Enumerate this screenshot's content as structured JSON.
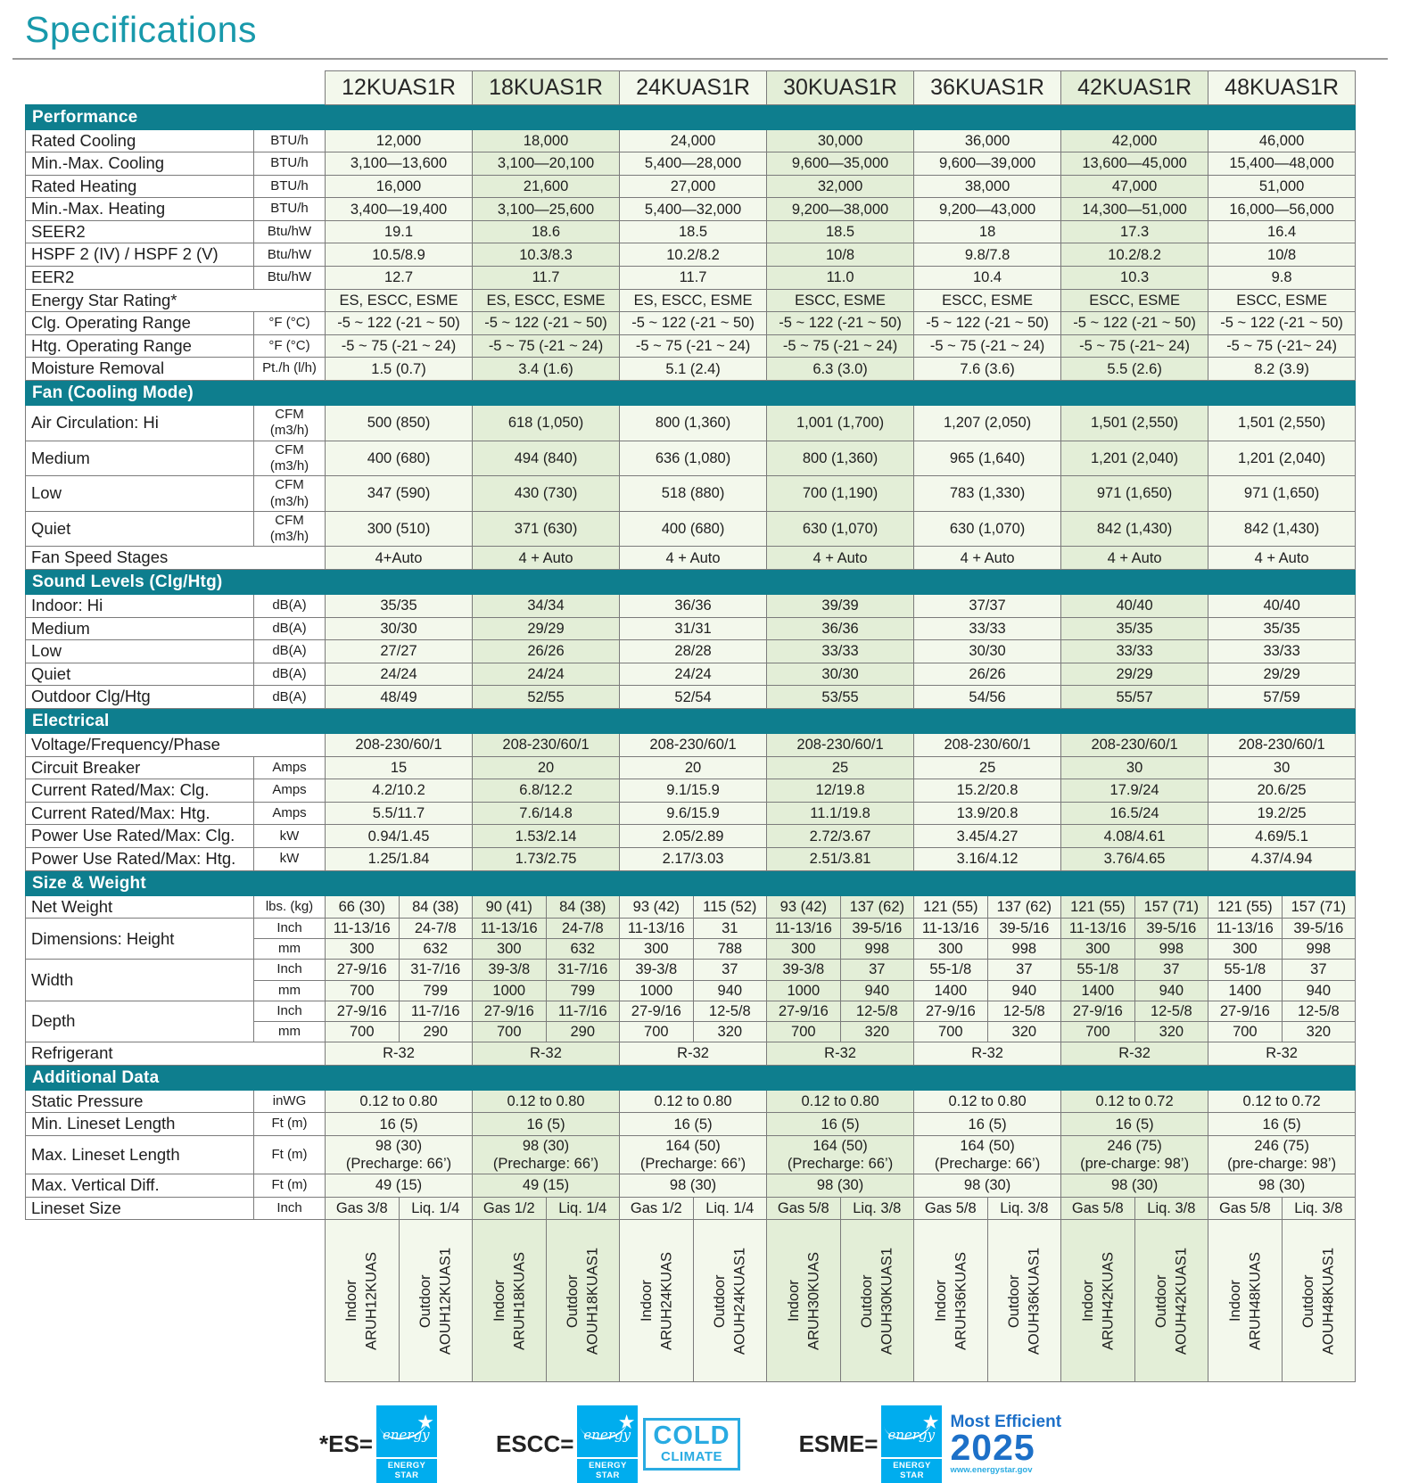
{
  "page_title": "Specifications",
  "colors": {
    "section_teal": "#0E7E8E",
    "title_teal": "#1899AB",
    "column_light": "#F3F8EC",
    "column_dark": "#E3EED7",
    "energy_star_blue": "#00ADEE",
    "cold_climate_blue": "#29ABE2",
    "most_efficient_blue": "#1D70C8"
  },
  "models": [
    "12KUAS1R",
    "18KUAS1R",
    "24KUAS1R",
    "30KUAS1R",
    "36KUAS1R",
    "42KUAS1R",
    "48KUAS1R"
  ],
  "sections": [
    {
      "title": "Performance",
      "rows": [
        {
          "label": "Rated Cooling",
          "unit": "BTU/h",
          "values": [
            "12,000",
            "18,000",
            "24,000",
            "30,000",
            "36,000",
            "42,000",
            "46,000"
          ]
        },
        {
          "label": "Min.-Max. Cooling",
          "unit": "BTU/h",
          "values": [
            "3,100—13,600",
            "3,100—20,100",
            "5,400—28,000",
            "9,600—35,000",
            "9,600—39,000",
            "13,600—45,000",
            "15,400—48,000"
          ]
        },
        {
          "label": "Rated Heating",
          "unit": "BTU/h",
          "values": [
            "16,000",
            "21,600",
            "27,000",
            "32,000",
            "38,000",
            "47,000",
            "51,000"
          ]
        },
        {
          "label": "Min.-Max. Heating",
          "unit": "BTU/h",
          "values": [
            "3,400—19,400",
            "3,100—25,600",
            "5,400—32,000",
            "9,200—38,000",
            "9,200—43,000",
            "14,300—51,000",
            "16,000—56,000"
          ]
        },
        {
          "label": "SEER2",
          "unit": "Btu/hW",
          "values": [
            "19.1",
            "18.6",
            "18.5",
            "18.5",
            "18",
            "17.3",
            "16.4"
          ]
        },
        {
          "label": "HSPF 2 (IV) / HSPF 2 (V)",
          "unit": "Btu/hW",
          "values": [
            "10.5/8.9",
            "10.3/8.3",
            "10.2/8.2",
            "10/8",
            "9.8/7.8",
            "10.2/8.2",
            "10/8"
          ]
        },
        {
          "label": "EER2",
          "unit": "Btu/hW",
          "values": [
            "12.7",
            "11.7",
            "11.7",
            "11.0",
            "10.4",
            "10.3",
            "9.8"
          ]
        },
        {
          "label": "Energy Star Rating*",
          "unit": null,
          "values": [
            "ES, ESCC, ESME",
            "ES, ESCC, ESME",
            "ES, ESCC, ESME",
            "ESCC, ESME",
            "ESCC, ESME",
            "ESCC, ESME",
            "ESCC, ESME"
          ]
        },
        {
          "label": "Clg. Operating Range",
          "unit": "°F (°C)",
          "values": [
            "-5 ~ 122 (-21 ~ 50)",
            "-5 ~ 122 (-21 ~ 50)",
            "-5 ~ 122 (-21 ~ 50)",
            "-5 ~ 122 (-21 ~ 50)",
            "-5 ~ 122 (-21 ~ 50)",
            "-5 ~ 122 (-21 ~ 50)",
            "-5 ~ 122 (-21 ~ 50)"
          ]
        },
        {
          "label": "Htg. Operating Range",
          "unit": "°F (°C)",
          "values": [
            "-5 ~ 75 (-21 ~ 24)",
            "-5 ~ 75 (-21 ~ 24)",
            "-5 ~ 75 (-21 ~ 24)",
            "-5 ~ 75 (-21 ~ 24)",
            "-5 ~ 75 (-21 ~ 24)",
            "-5 ~ 75 (-21~ 24)",
            "-5 ~ 75 (-21~ 24)"
          ]
        },
        {
          "label": "Moisture Removal",
          "unit": "Pt./h (l/h)",
          "values": [
            "1.5 (0.7)",
            "3.4 (1.6)",
            "5.1 (2.4)",
            "6.3 (3.0)",
            "7.6 (3.6)",
            "5.5 (2.6)",
            "8.2 (3.9)"
          ]
        }
      ]
    },
    {
      "title": "Fan (Cooling Mode)",
      "rows": [
        {
          "label": "Air Circulation: Hi",
          "unit": "CFM\n(m3/h)",
          "values": [
            "500 (850)",
            "618 (1,050)",
            "800 (1,360)",
            "1,001 (1,700)",
            "1,207 (2,050)",
            "1,501 (2,550)",
            "1,501 (2,550)"
          ]
        },
        {
          "label": "Medium",
          "unit": "CFM\n(m3/h)",
          "values": [
            "400 (680)",
            "494 (840)",
            "636 (1,080)",
            "800 (1,360)",
            "965 (1,640)",
            "1,201 (2,040)",
            "1,201 (2,040)"
          ]
        },
        {
          "label": "Low",
          "unit": "CFM\n(m3/h)",
          "values": [
            "347 (590)",
            "430 (730)",
            "518 (880)",
            "700 (1,190)",
            "783 (1,330)",
            "971 (1,650)",
            "971 (1,650)"
          ]
        },
        {
          "label": "Quiet",
          "unit": "CFM\n(m3/h)",
          "values": [
            "300 (510)",
            "371 (630)",
            "400 (680)",
            "630 (1,070)",
            "630 (1,070)",
            "842 (1,430)",
            "842 (1,430)"
          ]
        },
        {
          "label": "Fan Speed Stages",
          "unit": null,
          "values": [
            "4+Auto",
            "4 + Auto",
            "4 + Auto",
            "4 + Auto",
            "4 + Auto",
            "4 + Auto",
            "4 + Auto"
          ]
        }
      ]
    },
    {
      "title": "Sound Levels (Clg/Htg)",
      "rows": [
        {
          "label": "Indoor: Hi",
          "unit": "dB(A)",
          "values": [
            "35/35",
            "34/34",
            "36/36",
            "39/39",
            "37/37",
            "40/40",
            "40/40"
          ]
        },
        {
          "label": "Medium",
          "unit": "dB(A)",
          "values": [
            "30/30",
            "29/29",
            "31/31",
            "36/36",
            "33/33",
            "35/35",
            "35/35"
          ]
        },
        {
          "label": "Low",
          "unit": "dB(A)",
          "values": [
            "27/27",
            "26/26",
            "28/28",
            "33/33",
            "30/30",
            "33/33",
            "33/33"
          ]
        },
        {
          "label": "Quiet",
          "unit": "dB(A)",
          "values": [
            "24/24",
            "24/24",
            "24/24",
            "30/30",
            "26/26",
            "29/29",
            "29/29"
          ]
        },
        {
          "label": "Outdoor Clg/Htg",
          "unit": "dB(A)",
          "values": [
            "48/49",
            "52/55",
            "52/54",
            "53/55",
            "54/56",
            "55/57",
            "57/59"
          ]
        }
      ]
    },
    {
      "title": "Electrical",
      "rows": [
        {
          "label": "Voltage/Frequency/Phase",
          "unit": null,
          "values": [
            "208-230/60/1",
            "208-230/60/1",
            "208-230/60/1",
            "208-230/60/1",
            "208-230/60/1",
            "208-230/60/1",
            "208-230/60/1"
          ]
        },
        {
          "label": "Circuit Breaker",
          "unit": "Amps",
          "values": [
            "15",
            "20",
            "20",
            "25",
            "25",
            "30",
            "30"
          ]
        },
        {
          "label": "Current Rated/Max: Clg.",
          "unit": "Amps",
          "values": [
            "4.2/10.2",
            "6.8/12.2",
            "9.1/15.9",
            "12/19.8",
            "15.2/20.8",
            "17.9/24",
            "20.6/25"
          ]
        },
        {
          "label": "Current Rated/Max: Htg.",
          "unit": "Amps",
          "values": [
            "5.5/11.7",
            "7.6/14.8",
            "9.6/15.9",
            "11.1/19.8",
            "13.9/20.8",
            "16.5/24",
            "19.2/25"
          ]
        },
        {
          "label": "Power Use Rated/Max: Clg.",
          "unit": "kW",
          "values": [
            "0.94/1.45",
            "1.53/2.14",
            "2.05/2.89",
            "2.72/3.67",
            "3.45/4.27",
            "4.08/4.61",
            "4.69/5.1"
          ]
        },
        {
          "label": "Power Use Rated/Max: Htg.",
          "unit": "kW",
          "values": [
            "1.25/1.84",
            "1.73/2.75",
            "2.17/3.03",
            "2.51/3.81",
            "3.16/4.12",
            "3.76/4.65",
            "4.37/4.94"
          ]
        }
      ]
    },
    {
      "title": "Size & Weight",
      "rows": [
        {
          "label": "Net Weight",
          "unit": "lbs. (kg)",
          "values": [
            "66 (30)",
            "84 (38)",
            "90 (41)",
            "84 (38)",
            "93 (42)",
            "115 (52)",
            "93 (42)",
            "137 (62)",
            "121 (55)",
            "137 (62)",
            "121 (55)",
            "157 (71)",
            "121 (55)",
            "157 (71)"
          ]
        },
        {
          "label": "Dimensions: Height",
          "subrows": [
            {
              "unit": "Inch",
              "values": [
                "11-13/16",
                "24-7/8",
                "11-13/16",
                "24-7/8",
                "11-13/16",
                "31",
                "11-13/16",
                "39-5/16",
                "11-13/16",
                "39-5/16",
                "11-13/16",
                "39-5/16",
                "11-13/16",
                "39-5/16"
              ]
            },
            {
              "unit": "mm",
              "values": [
                "300",
                "632",
                "300",
                "632",
                "300",
                "788",
                "300",
                "998",
                "300",
                "998",
                "300",
                "998",
                "300",
                "998"
              ]
            }
          ]
        },
        {
          "label": "Width",
          "subrows": [
            {
              "unit": "Inch",
              "values": [
                "27-9/16",
                "31-7/16",
                "39-3/8",
                "31-7/16",
                "39-3/8",
                "37",
                "39-3/8",
                "37",
                "55-1/8",
                "37",
                "55-1/8",
                "37",
                "55-1/8",
                "37"
              ]
            },
            {
              "unit": "mm",
              "values": [
                "700",
                "799",
                "1000",
                "799",
                "1000",
                "940",
                "1000",
                "940",
                "1400",
                "940",
                "1400",
                "940",
                "1400",
                "940"
              ]
            }
          ]
        },
        {
          "label": "Depth",
          "subrows": [
            {
              "unit": "Inch",
              "values": [
                "27-9/16",
                "11-7/16",
                "27-9/16",
                "11-7/16",
                "27-9/16",
                "12-5/8",
                "27-9/16",
                "12-5/8",
                "27-9/16",
                "12-5/8",
                "27-9/16",
                "12-5/8",
                "27-9/16",
                "12-5/8"
              ]
            },
            {
              "unit": "mm",
              "values": [
                "700",
                "290",
                "700",
                "290",
                "700",
                "320",
                "700",
                "320",
                "700",
                "320",
                "700",
                "320",
                "700",
                "320"
              ]
            }
          ]
        },
        {
          "label": "Refrigerant",
          "unit": null,
          "values": [
            "R-32",
            "R-32",
            "R-32",
            "R-32",
            "R-32",
            "R-32",
            "R-32"
          ]
        }
      ]
    },
    {
      "title": "Additional Data",
      "rows": [
        {
          "label": "Static Pressure",
          "unit": "inWG",
          "values": [
            "0.12 to 0.80",
            "0.12 to 0.80",
            "0.12 to 0.80",
            "0.12 to 0.80",
            "0.12 to 0.80",
            "0.12 to 0.72",
            "0.12 to 0.72"
          ]
        },
        {
          "label": "Min. Lineset Length",
          "unit": "Ft (m)",
          "values": [
            "16 (5)",
            "16 (5)",
            "16 (5)",
            "16 (5)",
            "16 (5)",
            "16 (5)",
            "16 (5)"
          ]
        },
        {
          "label": "Max. Lineset Length",
          "unit": "Ft (m)",
          "values": [
            "98 (30)\n(Precharge: 66’)",
            "98 (30)\n(Precharge: 66’)",
            "164 (50)\n(Precharge: 66’)",
            "164 (50)\n(Precharge: 66’)",
            "164 (50)\n(Precharge: 66’)",
            "246 (75)\n(pre-charge: 98’)",
            "246 (75)\n(pre-charge: 98’)"
          ]
        },
        {
          "label": "Max. Vertical Diff.",
          "unit": "Ft (m)",
          "values": [
            "49 (15)",
            "49 (15)",
            "98 (30)",
            "98 (30)",
            "98 (30)",
            "98 (30)",
            "98 (30)"
          ]
        },
        {
          "label": "Lineset Size",
          "unit": "Inch",
          "values": [
            "Gas 3/8",
            "Liq. 1/4",
            "Gas 1/2",
            "Liq. 1/4",
            "Gas 1/2",
            "Liq. 1/4",
            "Gas 5/8",
            "Liq. 3/8",
            "Gas 5/8",
            "Liq. 3/8",
            "Gas 5/8",
            "Liq. 3/8",
            "Gas 5/8",
            "Liq. 3/8"
          ]
        }
      ]
    }
  ],
  "footer_models": [
    "Indoor\nARUH12KUAS",
    "Outdoor\nAOUH12KUAS1",
    "Indoor\nARUH18KUAS",
    "Outdoor\nAOUH18KUAS1",
    "Indoor\nARUH24KUAS",
    "Outdoor\nAOUH24KUAS1",
    "Indoor\nARUH30KUAS",
    "Outdoor\nAOUH30KUAS1",
    "Indoor\nARUH36KUAS",
    "Outdoor\nAOUH36KUAS1",
    "Indoor\nARUH42KUAS",
    "Outdoor\nAOUH42KUAS1",
    "Indoor\nARUH48KUAS",
    "Outdoor\nAOUH48KUAS1"
  ],
  "legend": {
    "es_label": "*ES=",
    "escc_label": "ESCC=",
    "esme_label": "ESME=",
    "badge_script": "energy",
    "badge_caption": "ENERGY STAR",
    "cold_line1": "COLD",
    "cold_line2": "CLIMATE",
    "me_line1": "Most Efficient",
    "me_line2": "2025",
    "me_url": "www.energystar.gov"
  }
}
